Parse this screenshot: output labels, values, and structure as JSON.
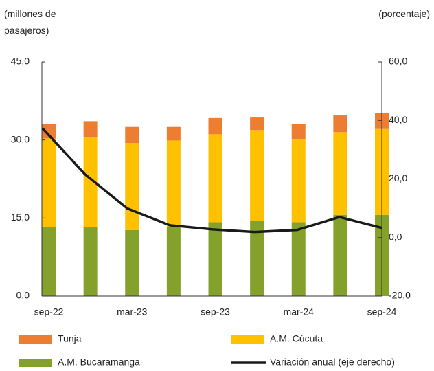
{
  "chart_data": {
    "type": "stacked_bar_line",
    "y_label": "(millones de pasajeros)",
    "y2_label": "(porcentaje)",
    "categories": [
      "sep-22",
      null,
      "mar-23",
      null,
      "sep-23",
      null,
      "mar-24",
      null,
      "sep-24"
    ],
    "series": [
      {
        "name": "A.M. Bucaramanga",
        "color": "#84a12c",
        "type": "bar",
        "values": [
          13.2,
          13.2,
          12.7,
          13.2,
          14.2,
          14.4,
          14.2,
          15.6,
          15.6
        ]
      },
      {
        "name": "A.M. Cúcuta",
        "color": "#ffc000",
        "type": "bar",
        "values": [
          17.1,
          17.3,
          16.7,
          16.7,
          16.9,
          17.5,
          16.0,
          15.9,
          16.5
        ]
      },
      {
        "name": "Tunja",
        "color": "#ed7d31",
        "type": "bar",
        "values": [
          2.8,
          3.1,
          3.1,
          2.6,
          3.1,
          2.4,
          2.9,
          3.2,
          3.1
        ]
      },
      {
        "name": "Variación anual (eje derecho)",
        "color": "#1a1a1a",
        "type": "line",
        "axis": "y2",
        "values": [
          37.3,
          21.6,
          9.9,
          4.2,
          2.8,
          1.9,
          2.6,
          7.0,
          3.3
        ]
      }
    ],
    "ylim": [
      0,
      45
    ],
    "yticks": [
      {
        "value": 0,
        "label": "0,0"
      },
      {
        "value": 15,
        "label": "15,0"
      },
      {
        "value": 30,
        "label": "30,0"
      },
      {
        "value": 45,
        "label": "45,0"
      }
    ],
    "y2lim": [
      -20,
      60
    ],
    "y2ticks": [
      {
        "value": -20,
        "label": "-20,0"
      },
      {
        "value": 0,
        "label": "0,0"
      },
      {
        "value": 20,
        "label": "20,0"
      },
      {
        "value": 40,
        "label": "40,0"
      },
      {
        "value": 60,
        "label": "60,0"
      }
    ]
  }
}
